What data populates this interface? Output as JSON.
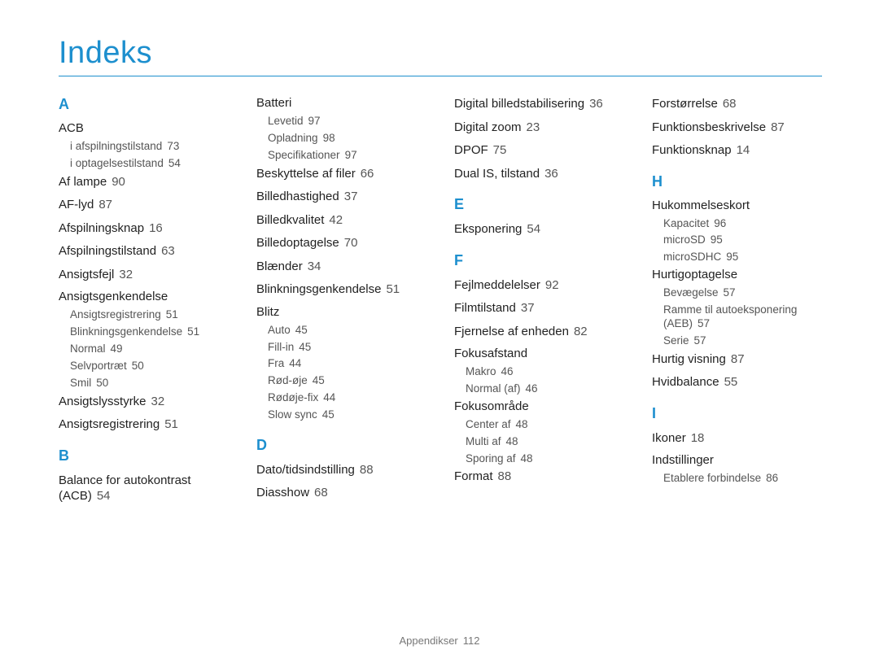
{
  "title": "Indeks",
  "footer": {
    "label": "Appendikser",
    "page": "112"
  },
  "colors": {
    "accent": "#1d8fce",
    "text": "#222222",
    "sub_text": "#555555",
    "background": "#ffffff"
  },
  "columns": [
    {
      "sections": [
        {
          "letter": "A",
          "items": [
            {
              "type": "group",
              "label": "ACB",
              "subs": [
                {
                  "label": "i afspilningstilstand",
                  "page": "73"
                },
                {
                  "label": "i optagelsestilstand",
                  "page": "54"
                }
              ]
            },
            {
              "type": "entry",
              "label": "Af lampe",
              "page": "90"
            },
            {
              "type": "entry",
              "label": "AF-lyd",
              "page": "87"
            },
            {
              "type": "entry",
              "label": "Afspilningsknap",
              "page": "16"
            },
            {
              "type": "entry",
              "label": "Afspilningstilstand",
              "page": "63"
            },
            {
              "type": "entry",
              "label": "Ansigtsfejl",
              "page": "32"
            },
            {
              "type": "group",
              "label": "Ansigtsgenkendelse",
              "subs": [
                {
                  "label": "Ansigtsregistrering",
                  "page": "51"
                },
                {
                  "label": "Blinkningsgenkendelse",
                  "page": "51"
                },
                {
                  "label": "Normal",
                  "page": "49"
                },
                {
                  "label": "Selvportræt",
                  "page": "50"
                },
                {
                  "label": "Smil",
                  "page": "50"
                }
              ]
            },
            {
              "type": "entry",
              "label": "Ansigtslysstyrke",
              "page": "32"
            },
            {
              "type": "entry",
              "label": "Ansigtsregistrering",
              "page": "51"
            }
          ]
        },
        {
          "letter": "B",
          "items": [
            {
              "type": "entry",
              "label": "Balance for autokontrast (ACB)",
              "page": "54"
            }
          ]
        }
      ]
    },
    {
      "sections": [
        {
          "letter": "",
          "items": [
            {
              "type": "group",
              "label": "Batteri",
              "subs": [
                {
                  "label": "Levetid",
                  "page": "97"
                },
                {
                  "label": "Opladning",
                  "page": "98"
                },
                {
                  "label": "Specifikationer",
                  "page": "97"
                }
              ]
            },
            {
              "type": "entry",
              "label": "Beskyttelse af filer",
              "page": "66"
            },
            {
              "type": "entry",
              "label": "Billedhastighed",
              "page": "37"
            },
            {
              "type": "entry",
              "label": "Billedkvalitet",
              "page": "42"
            },
            {
              "type": "entry",
              "label": "Billedoptagelse",
              "page": "70"
            },
            {
              "type": "entry",
              "label": "Blænder",
              "page": "34"
            },
            {
              "type": "entry",
              "label": "Blinkningsgenkendelse",
              "page": "51"
            },
            {
              "type": "group",
              "label": "Blitz",
              "subs": [
                {
                  "label": "Auto",
                  "page": "45"
                },
                {
                  "label": "Fill-in",
                  "page": "45"
                },
                {
                  "label": "Fra",
                  "page": "44"
                },
                {
                  "label": "Rød-øje",
                  "page": "45"
                },
                {
                  "label": "Rødøje-fix",
                  "page": "44"
                },
                {
                  "label": "Slow sync",
                  "page": "45"
                }
              ]
            }
          ]
        },
        {
          "letter": "D",
          "items": [
            {
              "type": "entry",
              "label": "Dato/tidsindstilling",
              "page": "88"
            },
            {
              "type": "entry",
              "label": "Diasshow",
              "page": "68"
            }
          ]
        }
      ]
    },
    {
      "sections": [
        {
          "letter": "",
          "items": [
            {
              "type": "entry",
              "label": "Digital billedstabilisering",
              "page": "36"
            },
            {
              "type": "entry",
              "label": "Digital zoom",
              "page": "23"
            },
            {
              "type": "entry",
              "label": "DPOF",
              "page": "75"
            },
            {
              "type": "entry",
              "label": "Dual IS, tilstand",
              "page": "36"
            }
          ]
        },
        {
          "letter": "E",
          "items": [
            {
              "type": "entry",
              "label": "Eksponering",
              "page": "54"
            }
          ]
        },
        {
          "letter": "F",
          "items": [
            {
              "type": "entry",
              "label": "Fejlmeddelelser",
              "page": "92"
            },
            {
              "type": "entry",
              "label": "Filmtilstand",
              "page": "37"
            },
            {
              "type": "entry",
              "label": "Fjernelse af enheden",
              "page": "82"
            },
            {
              "type": "group",
              "label": "Fokusafstand",
              "subs": [
                {
                  "label": "Makro",
                  "page": "46"
                },
                {
                  "label": "Normal (af)",
                  "page": "46"
                }
              ]
            },
            {
              "type": "group",
              "label": "Fokusområde",
              "subs": [
                {
                  "label": "Center af",
                  "page": "48"
                },
                {
                  "label": "Multi af",
                  "page": "48"
                },
                {
                  "label": "Sporing af",
                  "page": "48"
                }
              ]
            },
            {
              "type": "entry",
              "label": "Format",
              "page": "88"
            }
          ]
        }
      ]
    },
    {
      "sections": [
        {
          "letter": "",
          "items": [
            {
              "type": "entry",
              "label": "Forstørrelse",
              "page": "68"
            },
            {
              "type": "entry",
              "label": "Funktionsbeskrivelse",
              "page": "87"
            },
            {
              "type": "entry",
              "label": "Funktionsknap",
              "page": "14"
            }
          ]
        },
        {
          "letter": "H",
          "items": [
            {
              "type": "group",
              "label": "Hukommelseskort",
              "subs": [
                {
                  "label": "Kapacitet",
                  "page": "96"
                },
                {
                  "label": "microSD",
                  "page": "95"
                },
                {
                  "label": "microSDHC",
                  "page": "95"
                }
              ]
            },
            {
              "type": "group",
              "label": "Hurtigoptagelse",
              "subs": [
                {
                  "label": "Bevægelse",
                  "page": "57"
                },
                {
                  "label": "Ramme til autoeksponering (AEB)",
                  "page": "57"
                },
                {
                  "label": "Serie",
                  "page": "57"
                }
              ]
            },
            {
              "type": "entry",
              "label": "Hurtig visning",
              "page": "87"
            },
            {
              "type": "entry",
              "label": "Hvidbalance",
              "page": "55"
            }
          ]
        },
        {
          "letter": "I",
          "items": [
            {
              "type": "entry",
              "label": "Ikoner",
              "page": "18"
            },
            {
              "type": "group",
              "label": "Indstillinger",
              "subs": [
                {
                  "label": "Etablere forbindelse",
                  "page": "86"
                }
              ]
            }
          ]
        }
      ]
    }
  ]
}
